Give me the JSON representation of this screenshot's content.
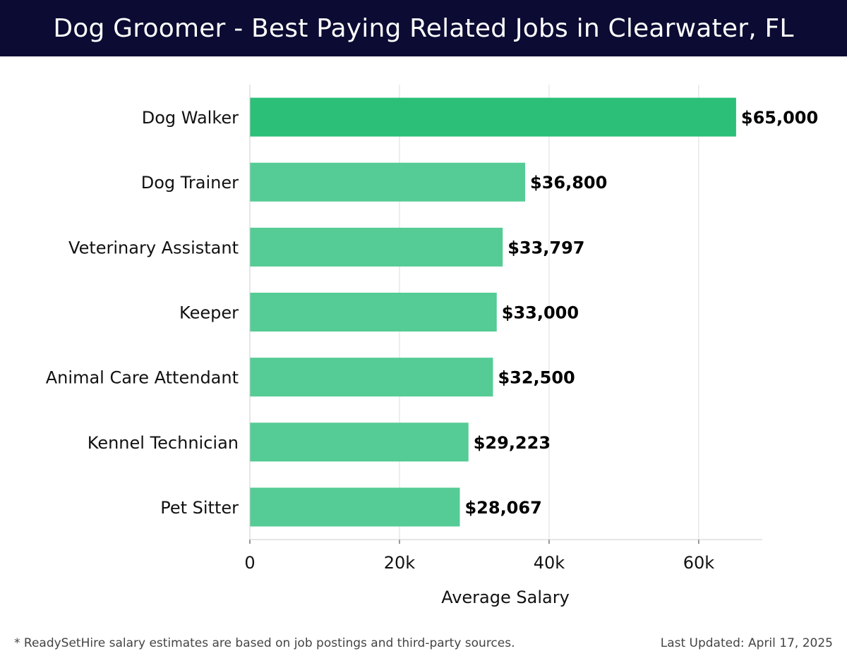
{
  "header": {
    "title": "Dog Groomer - Best Paying Related Jobs in Clearwater, FL"
  },
  "footer": {
    "note": "* ReadySetHire salary estimates are based on job postings and third-party sources.",
    "updated": "Last Updated: April 17, 2025"
  },
  "colors": {
    "header_bg": "#0b0b33",
    "top_bar": "#2bbf78",
    "bar": "#55cb95",
    "grid": "#dddddd",
    "text": "#111111"
  },
  "chart_data": {
    "type": "bar",
    "orientation": "horizontal",
    "title": "Dog Groomer - Best Paying Related Jobs in Clearwater, FL",
    "xlabel": "Average Salary",
    "ylabel": "",
    "xlim": [
      0,
      68500
    ],
    "xticks": [
      0,
      20000,
      40000,
      60000
    ],
    "xtick_labels": [
      "0",
      "20k",
      "40k",
      "60k"
    ],
    "grid": true,
    "categories": [
      "Dog Walker",
      "Dog Trainer",
      "Veterinary Assistant",
      "Keeper",
      "Animal Care Attendant",
      "Kennel Technician",
      "Pet Sitter"
    ],
    "values": [
      65000,
      36800,
      33797,
      33000,
      32500,
      29223,
      28067
    ],
    "value_labels": [
      "$65,000",
      "$36,800",
      "$33,797",
      "$33,000",
      "$32,500",
      "$29,223",
      "$28,067"
    ]
  }
}
